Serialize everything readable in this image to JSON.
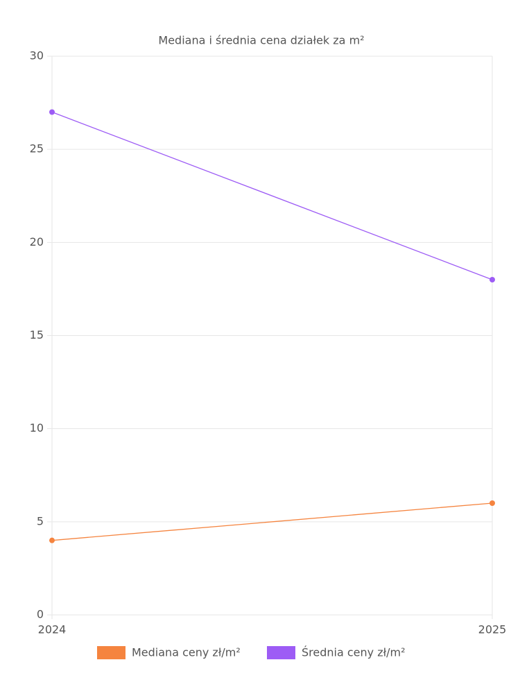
{
  "chart_data": {
    "type": "line",
    "title": "Mediana i średnia cena działek za m²",
    "categories": [
      "2024",
      "2025"
    ],
    "series": [
      {
        "name": "Mediana ceny zł/m²",
        "color": "#f5843f",
        "values": [
          4,
          6
        ]
      },
      {
        "name": "Średnia ceny zł/m²",
        "color": "#9d5cf5",
        "values": [
          27,
          18
        ]
      }
    ],
    "ylim": [
      0,
      30
    ],
    "yticks": [
      0,
      5,
      10,
      15,
      20,
      25,
      30
    ],
    "grid": true,
    "legend": "bottom"
  }
}
